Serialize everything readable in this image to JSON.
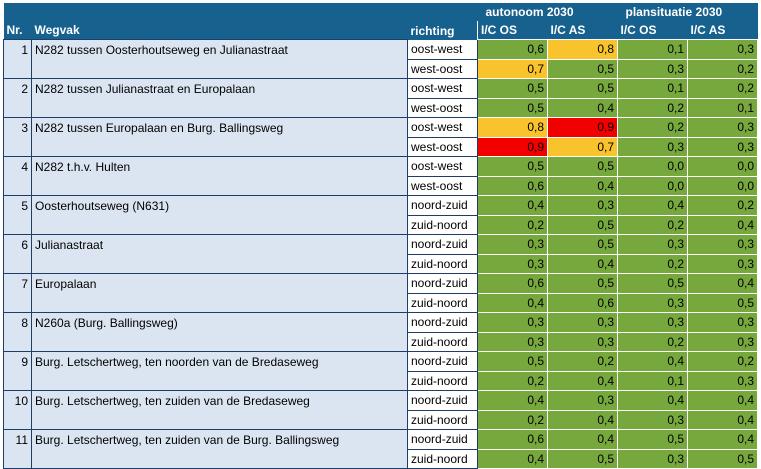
{
  "header": {
    "group_autonoom": "autonoom 2030",
    "group_plan": "plansituatie 2030",
    "nr": "Nr.",
    "wegvak": "Wegvak",
    "richting": "richting",
    "ic_os": "I/C OS",
    "ic_as": "I/C AS"
  },
  "colors": {
    "green": "#77a83d",
    "orange": "#f8c32d",
    "red": "#f20000",
    "header": "#17618f",
    "row": "#dbe5f1"
  },
  "rows": [
    {
      "nr": "1",
      "wegvak": "N282 tussen Oosterhoutseweg en Julianastraat",
      "richting": "oost-west",
      "a_os": "0,6",
      "a_as": "0,8",
      "p_os": "0,1",
      "p_as": "0,3",
      "a_os_c": "green",
      "a_as_c": "orange"
    },
    {
      "nr": "",
      "wegvak": "",
      "richting": "west-oost",
      "a_os": "0,7",
      "a_as": "0,5",
      "p_os": "0,3",
      "p_as": "0,2",
      "a_os_c": "orange",
      "a_as_c": "green"
    },
    {
      "nr": "2",
      "wegvak": "N282 tussen Julianastraat en Europalaan",
      "richting": "oost-west",
      "a_os": "0,5",
      "a_as": "0,5",
      "p_os": "0,1",
      "p_as": "0,2",
      "a_os_c": "green",
      "a_as_c": "green"
    },
    {
      "nr": "",
      "wegvak": "",
      "richting": "west-oost",
      "a_os": "0,5",
      "a_as": "0,4",
      "p_os": "0,2",
      "p_as": "0,1",
      "a_os_c": "green",
      "a_as_c": "green"
    },
    {
      "nr": "3",
      "wegvak": "N282 tussen Europalaan en Burg. Ballingsweg",
      "richting": "oost-west",
      "a_os": "0,8",
      "a_as": "0,9",
      "p_os": "0,2",
      "p_as": "0,3",
      "a_os_c": "orange",
      "a_as_c": "red"
    },
    {
      "nr": "",
      "wegvak": "",
      "richting": "west-oost",
      "a_os": "0,9",
      "a_as": "0,7",
      "p_os": "0,3",
      "p_as": "0,3",
      "a_os_c": "red",
      "a_as_c": "orange"
    },
    {
      "nr": "4",
      "wegvak": "N282 t.h.v. Hulten",
      "richting": "oost-west",
      "a_os": "0,5",
      "a_as": "0,5",
      "p_os": "0,0",
      "p_as": "0,0",
      "a_os_c": "green",
      "a_as_c": "green"
    },
    {
      "nr": "",
      "wegvak": "",
      "richting": "west-oost",
      "a_os": "0,6",
      "a_as": "0,4",
      "p_os": "0,0",
      "p_as": "0,0",
      "a_os_c": "green",
      "a_as_c": "green"
    },
    {
      "nr": "5",
      "wegvak": "Oosterhoutseweg (N631)",
      "richting": "noord-zuid",
      "a_os": "0,4",
      "a_as": "0,3",
      "p_os": "0,4",
      "p_as": "0,2",
      "a_os_c": "green",
      "a_as_c": "green"
    },
    {
      "nr": "",
      "wegvak": "",
      "richting": "zuid-noord",
      "a_os": "0,2",
      "a_as": "0,5",
      "p_os": "0,2",
      "p_as": "0,4",
      "a_os_c": "green",
      "a_as_c": "green"
    },
    {
      "nr": "6",
      "wegvak": "Julianastraat",
      "richting": "noord-zuid",
      "a_os": "0,3",
      "a_as": "0,5",
      "p_os": "0,3",
      "p_as": "0,3",
      "a_os_c": "green",
      "a_as_c": "green"
    },
    {
      "nr": "",
      "wegvak": "",
      "richting": "zuid-noord",
      "a_os": "0,3",
      "a_as": "0,4",
      "p_os": "0,2",
      "p_as": "0,3",
      "a_os_c": "green",
      "a_as_c": "green"
    },
    {
      "nr": "7",
      "wegvak": "Europalaan",
      "richting": "noord-zuid",
      "a_os": "0,6",
      "a_as": "0,5",
      "p_os": "0,5",
      "p_as": "0,4",
      "a_os_c": "green",
      "a_as_c": "green"
    },
    {
      "nr": "",
      "wegvak": "",
      "richting": "zuid-noord",
      "a_os": "0,4",
      "a_as": "0,6",
      "p_os": "0,3",
      "p_as": "0,5",
      "a_os_c": "green",
      "a_as_c": "green"
    },
    {
      "nr": "8",
      "wegvak": "N260a (Burg. Ballingsweg)",
      "richting": "noord-zuid",
      "a_os": "0,3",
      "a_as": "0,3",
      "p_os": "0,3",
      "p_as": "0,3",
      "a_os_c": "green",
      "a_as_c": "green"
    },
    {
      "nr": "",
      "wegvak": "",
      "richting": "zuid-noord",
      "a_os": "0,3",
      "a_as": "0,3",
      "p_os": "0,2",
      "p_as": "0,3",
      "a_os_c": "green",
      "a_as_c": "green"
    },
    {
      "nr": "9",
      "wegvak": "Burg. Letschertweg, ten noorden van de Bredaseweg",
      "richting": "noord-zuid",
      "a_os": "0,5",
      "a_as": "0,2",
      "p_os": "0,4",
      "p_as": "0,2",
      "a_os_c": "green",
      "a_as_c": "green"
    },
    {
      "nr": "",
      "wegvak": "",
      "richting": "zuid-noord",
      "a_os": "0,2",
      "a_as": "0,4",
      "p_os": "0,1",
      "p_as": "0,3",
      "a_os_c": "green",
      "a_as_c": "green"
    },
    {
      "nr": "10",
      "wegvak": "Burg. Letschertweg, ten zuiden van de Bredaseweg",
      "richting": "noord-zuid",
      "a_os": "0,4",
      "a_as": "0,3",
      "p_os": "0,4",
      "p_as": "0,4",
      "a_os_c": "green",
      "a_as_c": "green"
    },
    {
      "nr": "",
      "wegvak": "",
      "richting": "zuid-noord",
      "a_os": "0,2",
      "a_as": "0,4",
      "p_os": "0,3",
      "p_as": "0,4",
      "a_os_c": "green",
      "a_as_c": "green"
    },
    {
      "nr": "11",
      "wegvak": "Burg. Letschertweg, ten zuiden van de Burg. Ballingsweg",
      "richting": "noord-zuid",
      "a_os": "0,6",
      "a_as": "0,4",
      "p_os": "0,5",
      "p_as": "0,4",
      "a_os_c": "green",
      "a_as_c": "green"
    },
    {
      "nr": "",
      "wegvak": "",
      "richting": "zuid-noord",
      "a_os": "0,4",
      "a_as": "0,5",
      "p_os": "0,3",
      "p_as": "0,5",
      "a_os_c": "green",
      "a_as_c": "green"
    }
  ]
}
